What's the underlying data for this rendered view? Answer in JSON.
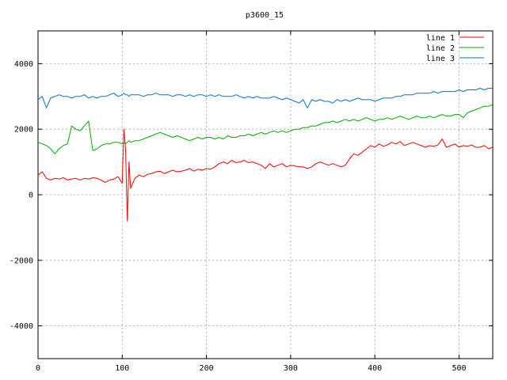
{
  "chart_data": {
    "type": "line",
    "title": "p3600_15",
    "xlabel": "",
    "ylabel": "",
    "xlim": [
      0,
      540
    ],
    "ylim": [
      -5000,
      5000
    ],
    "xticks": [
      0,
      100,
      200,
      300,
      400,
      500
    ],
    "yticks": [
      -4000,
      -2000,
      0,
      2000,
      4000
    ],
    "grid": true,
    "legend_position": "top-right",
    "x": [
      0,
      5,
      10,
      15,
      20,
      25,
      30,
      35,
      40,
      45,
      50,
      55,
      60,
      65,
      70,
      75,
      80,
      85,
      90,
      95,
      100,
      102,
      104,
      106,
      108,
      110,
      115,
      120,
      125,
      130,
      135,
      140,
      145,
      150,
      155,
      160,
      165,
      170,
      175,
      180,
      185,
      190,
      195,
      200,
      205,
      210,
      215,
      220,
      225,
      230,
      235,
      240,
      245,
      250,
      255,
      260,
      265,
      270,
      275,
      280,
      285,
      290,
      295,
      300,
      305,
      310,
      315,
      320,
      325,
      330,
      335,
      340,
      345,
      350,
      355,
      360,
      365,
      370,
      375,
      380,
      385,
      390,
      395,
      400,
      405,
      410,
      415,
      420,
      425,
      430,
      435,
      440,
      445,
      450,
      455,
      460,
      465,
      470,
      475,
      480,
      485,
      490,
      495,
      500,
      505,
      510,
      515,
      520,
      525,
      530,
      535,
      540
    ],
    "series": [
      {
        "name": "line 1",
        "color": "#ff0000",
        "values": [
          600,
          700,
          500,
          450,
          500,
          480,
          520,
          450,
          480,
          500,
          450,
          500,
          480,
          520,
          500,
          450,
          380,
          450,
          480,
          550,
          350,
          2000,
          1400,
          -800,
          1000,
          200,
          500,
          600,
          550,
          620,
          650,
          700,
          720,
          650,
          700,
          750,
          700,
          720,
          750,
          800,
          720,
          780,
          750,
          800,
          780,
          850,
          950,
          1000,
          950,
          1050,
          980,
          1000,
          1050,
          980,
          1000,
          950,
          900,
          800,
          950,
          850,
          900,
          950,
          850,
          900,
          880,
          850,
          850,
          800,
          850,
          950,
          1000,
          950,
          900,
          950,
          900,
          850,
          900,
          1100,
          1250,
          1200,
          1300,
          1400,
          1500,
          1450,
          1550,
          1480,
          1520,
          1600,
          1550,
          1620,
          1500,
          1550,
          1600,
          1550,
          1500,
          1450,
          1500,
          1480,
          1520,
          1700,
          1450,
          1500,
          1550,
          1450,
          1500,
          1480,
          1520,
          1450,
          1450,
          1500,
          1400,
          1450
        ]
      },
      {
        "name": "line 2",
        "color": "#00aa00",
        "values": [
          1600,
          1550,
          1500,
          1400,
          1250,
          1400,
          1500,
          1550,
          2100,
          2000,
          1950,
          2100,
          2250,
          1350,
          1400,
          1500,
          1550,
          1550,
          1600,
          1600,
          1550,
          1600,
          1550,
          1600,
          1650,
          1600,
          1650,
          1650,
          1700,
          1750,
          1800,
          1850,
          1900,
          1850,
          1800,
          1750,
          1800,
          1750,
          1700,
          1650,
          1700,
          1750,
          1700,
          1750,
          1750,
          1700,
          1750,
          1700,
          1800,
          1750,
          1750,
          1800,
          1800,
          1850,
          1800,
          1850,
          1900,
          1850,
          1900,
          1950,
          1900,
          1950,
          1900,
          1950,
          2000,
          2000,
          2050,
          2050,
          2100,
          2100,
          2150,
          2200,
          2200,
          2250,
          2200,
          2250,
          2300,
          2250,
          2300,
          2250,
          2300,
          2350,
          2300,
          2250,
          2300,
          2300,
          2350,
          2300,
          2350,
          2400,
          2350,
          2300,
          2350,
          2400,
          2350,
          2350,
          2400,
          2350,
          2400,
          2450,
          2400,
          2400,
          2450,
          2450,
          2350,
          2500,
          2550,
          2600,
          2650,
          2700,
          2700,
          2750
        ]
      },
      {
        "name": "line 3",
        "color": "#0070cc",
        "values": [
          2900,
          3000,
          2650,
          2950,
          3000,
          3050,
          3000,
          3000,
          2950,
          3000,
          3000,
          3050,
          2950,
          3000,
          2950,
          3000,
          3000,
          3050,
          3100,
          3000,
          3050,
          3100,
          3050,
          3050,
          3000,
          3050,
          3050,
          3050,
          3000,
          3050,
          3050,
          3100,
          3050,
          3050,
          3050,
          3000,
          3050,
          3050,
          3000,
          3050,
          3000,
          3050,
          3050,
          3000,
          3050,
          3000,
          3050,
          3000,
          3000,
          3000,
          3050,
          3000,
          2950,
          3000,
          2950,
          3000,
          2950,
          2950,
          2950,
          3000,
          2950,
          2900,
          2950,
          2900,
          2850,
          2800,
          2900,
          2650,
          2900,
          2850,
          2900,
          2850,
          2850,
          2800,
          2900,
          2850,
          2900,
          2850,
          2900,
          2950,
          2900,
          2900,
          2900,
          2850,
          2900,
          2950,
          2950,
          2950,
          3000,
          3000,
          3050,
          3050,
          3050,
          3100,
          3100,
          3100,
          3100,
          3150,
          3100,
          3150,
          3150,
          3150,
          3150,
          3200,
          3150,
          3200,
          3200,
          3200,
          3250,
          3200,
          3250,
          3250
        ]
      }
    ]
  }
}
